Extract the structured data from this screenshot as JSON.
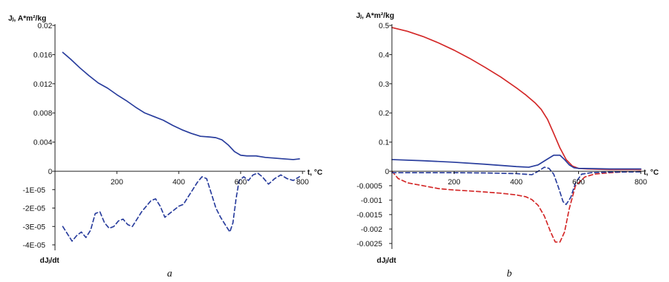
{
  "panels": [
    {
      "label": "a",
      "y_title": "Jⱼ, A*m²/kg",
      "x_title": "t, °C",
      "y2_title": "dJⱼ/dt"
    },
    {
      "label": "b",
      "y_title": "Jⱼ, A*m²/kg",
      "x_title": "t, °C",
      "y2_title": "dJⱼ/dt"
    }
  ],
  "chart_data": [
    {
      "type": "line",
      "xlabel": "t, °C",
      "ylabel": "Jⱼ, A*m²/kg",
      "y2label": "dJⱼ/dt",
      "xlim": [
        0,
        800
      ],
      "ylim": [
        0,
        0.02
      ],
      "y2lim": [
        -4e-05,
        0
      ],
      "x_ticks": [
        "200",
        "400",
        "600",
        "800"
      ],
      "y_ticks": [
        "0",
        "0.004",
        "0.008",
        "0.012",
        "0.016",
        "0.02"
      ],
      "y2_ticks": [
        "-1E-05",
        "-2E-05",
        "-3E-05",
        "-4E-05"
      ],
      "grid": false,
      "colors": {
        "magnetization": "#2b3f9e",
        "derivative": "#2b3f9e"
      },
      "series": [
        {
          "axis": "y",
          "style": "solid",
          "color": "#2b3f9e",
          "x": [
            25,
            50,
            80,
            110,
            140,
            170,
            200,
            230,
            260,
            290,
            320,
            350,
            380,
            410,
            440,
            470,
            500,
            520,
            540,
            560,
            580,
            600,
            620,
            650,
            680,
            710,
            740,
            770,
            790
          ],
          "y": [
            0.0163,
            0.0154,
            0.0142,
            0.0131,
            0.0121,
            0.0114,
            0.0105,
            0.0097,
            0.0088,
            0.008,
            0.0075,
            0.007,
            0.0063,
            0.0057,
            0.0052,
            0.0048,
            0.0047,
            0.0046,
            0.0043,
            0.0036,
            0.0027,
            0.0022,
            0.0021,
            0.0021,
            0.0019,
            0.0018,
            0.0017,
            0.0016,
            0.0017
          ]
        },
        {
          "axis": "y2",
          "style": "dashed",
          "color": "#2b3f9e",
          "x": [
            25,
            40,
            55,
            70,
            85,
            100,
            115,
            130,
            145,
            160,
            175,
            190,
            205,
            220,
            235,
            250,
            265,
            280,
            295,
            310,
            325,
            340,
            355,
            370,
            385,
            400,
            415,
            430,
            445,
            460,
            475,
            490,
            505,
            520,
            535,
            550,
            565,
            575,
            585,
            595,
            610,
            625,
            640,
            655,
            670,
            690,
            710,
            730,
            750,
            770,
            790
          ],
          "y": [
            -3e-05,
            -3.4e-05,
            -3.8e-05,
            -3.5e-05,
            -3.3e-05,
            -3.6e-05,
            -3.2e-05,
            -2.3e-05,
            -2.2e-05,
            -2.8e-05,
            -3.1e-05,
            -3e-05,
            -2.7e-05,
            -2.6e-05,
            -2.9e-05,
            -3e-05,
            -2.6e-05,
            -2.2e-05,
            -1.9e-05,
            -1.6e-05,
            -1.5e-05,
            -1.9e-05,
            -2.5e-05,
            -2.3e-05,
            -2.1e-05,
            -1.9e-05,
            -1.8e-05,
            -1.4e-05,
            -1e-05,
            -6e-06,
            -3e-06,
            -4e-06,
            -1.2e-05,
            -2e-05,
            -2.5e-05,
            -2.9e-05,
            -3.3e-05,
            -2.8e-05,
            -1.5e-05,
            -5e-06,
            -3e-06,
            -5e-06,
            -2e-06,
            -1e-06,
            -3e-06,
            -7e-06,
            -4e-06,
            -2e-06,
            -4e-06,
            -5e-06,
            -3e-06
          ]
        }
      ]
    },
    {
      "type": "line",
      "xlabel": "t, °C",
      "ylabel": "Jⱼ, A*m²/kg",
      "y2label": "dJⱼ/dt",
      "xlim": [
        0,
        800
      ],
      "ylim": [
        0,
        0.5
      ],
      "y2lim": [
        -0.0025,
        0
      ],
      "x_ticks": [
        "200",
        "400",
        "600",
        "800"
      ],
      "y_ticks": [
        "0",
        "0.1",
        "0.2",
        "0.3",
        "0.4",
        "0.5"
      ],
      "y2_ticks": [
        "-0.0005",
        "-0.001",
        "-0.0015",
        "-0.002",
        "-0.0025"
      ],
      "grid": false,
      "colors": {
        "red": "#d42a2a",
        "blue": "#2b3f9e"
      },
      "series": [
        {
          "axis": "y",
          "style": "solid",
          "color": "#d42a2a",
          "x": [
            0,
            50,
            100,
            150,
            200,
            250,
            300,
            350,
            400,
            430,
            460,
            480,
            500,
            520,
            540,
            560,
            580,
            600,
            630,
            660,
            700,
            750,
            800
          ],
          "y": [
            0.493,
            0.48,
            0.462,
            0.44,
            0.415,
            0.387,
            0.356,
            0.323,
            0.286,
            0.262,
            0.235,
            0.212,
            0.178,
            0.13,
            0.08,
            0.04,
            0.018,
            0.01,
            0.008,
            0.007,
            0.006,
            0.006,
            0.006
          ]
        },
        {
          "axis": "y",
          "style": "solid",
          "color": "#2b3f9e",
          "x": [
            0,
            100,
            200,
            300,
            400,
            440,
            470,
            500,
            520,
            540,
            555,
            570,
            585,
            600,
            650,
            700,
            800
          ],
          "y": [
            0.04,
            0.036,
            0.031,
            0.024,
            0.016,
            0.014,
            0.022,
            0.042,
            0.055,
            0.055,
            0.04,
            0.022,
            0.012,
            0.01,
            0.009,
            0.008,
            0.008
          ]
        },
        {
          "axis": "y2",
          "style": "dashed",
          "color": "#d42a2a",
          "x": [
            0,
            20,
            50,
            100,
            150,
            200,
            250,
            300,
            350,
            400,
            430,
            450,
            470,
            490,
            510,
            525,
            540,
            555,
            570,
            590,
            620,
            650,
            700,
            750,
            800
          ],
          "y": [
            0.0,
            -0.00025,
            -0.0004,
            -0.0005,
            -0.0006,
            -0.00065,
            -0.00068,
            -0.00072,
            -0.00076,
            -0.00082,
            -0.00088,
            -0.00098,
            -0.00118,
            -0.00155,
            -0.0021,
            -0.00245,
            -0.00245,
            -0.0021,
            -0.0013,
            -0.0005,
            -0.0002,
            -0.0001,
            -5e-05,
            -2e-05,
            0.0
          ]
        },
        {
          "axis": "y2",
          "style": "dashed",
          "color": "#2b3f9e",
          "x": [
            0,
            100,
            200,
            300,
            400,
            450,
            470,
            490,
            505,
            520,
            535,
            550,
            560,
            575,
            590,
            610,
            640,
            700,
            800
          ],
          "y": [
            -5e-05,
            -5e-05,
            -5e-05,
            -6e-05,
            -8e-05,
            -0.00012,
            0.0,
            0.00014,
            0.0001,
            -0.0001,
            -0.00055,
            -0.00105,
            -0.00115,
            -0.0009,
            -0.0004,
            -0.0001,
            -5e-05,
            -3e-05,
            -2e-05
          ]
        }
      ]
    }
  ]
}
